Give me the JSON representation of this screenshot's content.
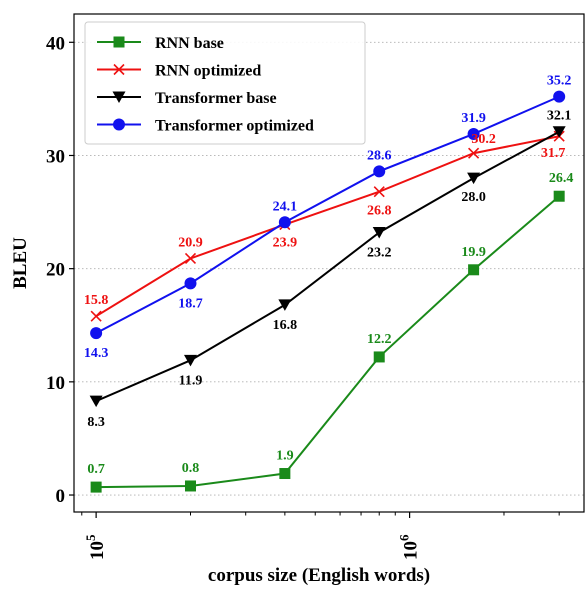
{
  "chart_data": {
    "type": "line",
    "title": "",
    "xlabel": "corpus size (English words)",
    "ylabel": "BLEU",
    "x_scale": "log",
    "x": [
      100000,
      200000,
      400000,
      800000,
      1600000,
      3000000
    ],
    "xlim": [
      85000,
      3600000
    ],
    "ylim": [
      -1.5,
      42.5
    ],
    "x_ticks": [
      {
        "value": 100000,
        "base": "10",
        "exp": "5"
      },
      {
        "value": 1000000,
        "base": "10",
        "exp": "6"
      }
    ],
    "y_ticks": [
      0,
      10,
      20,
      30,
      40
    ],
    "y_tick_labels": [
      "0",
      "10",
      "20",
      "30",
      "40"
    ],
    "grid": "horizontal-dotted",
    "legend_position": "top-left",
    "series": [
      {
        "name": "RNN base",
        "color": "#1a8a1a",
        "marker": "square",
        "values": [
          0.7,
          0.8,
          1.9,
          12.2,
          19.9,
          26.4
        ],
        "labels": [
          "0.7",
          "0.8",
          "1.9",
          "12.2",
          "19.9",
          "26.4"
        ]
      },
      {
        "name": "RNN optimized",
        "color": "#ee1111",
        "marker": "x",
        "values": [
          15.8,
          20.9,
          23.9,
          26.8,
          30.2,
          31.7
        ],
        "labels": [
          "15.8",
          "20.9",
          "23.9",
          "26.8",
          "30.2",
          "31.7"
        ]
      },
      {
        "name": "Transformer base",
        "color": "#000000",
        "marker": "triangle-down",
        "values": [
          8.3,
          11.9,
          16.8,
          23.2,
          28.0,
          32.1
        ],
        "labels": [
          "8.3",
          "11.9",
          "16.8",
          "23.2",
          "28.0",
          "32.1"
        ]
      },
      {
        "name": "Transformer optimized",
        "color": "#1111ee",
        "marker": "circle",
        "values": [
          14.3,
          18.7,
          24.1,
          28.6,
          31.9,
          35.2
        ],
        "labels": [
          "14.3",
          "18.7",
          "24.1",
          "28.6",
          "31.9",
          "35.2"
        ]
      }
    ]
  }
}
